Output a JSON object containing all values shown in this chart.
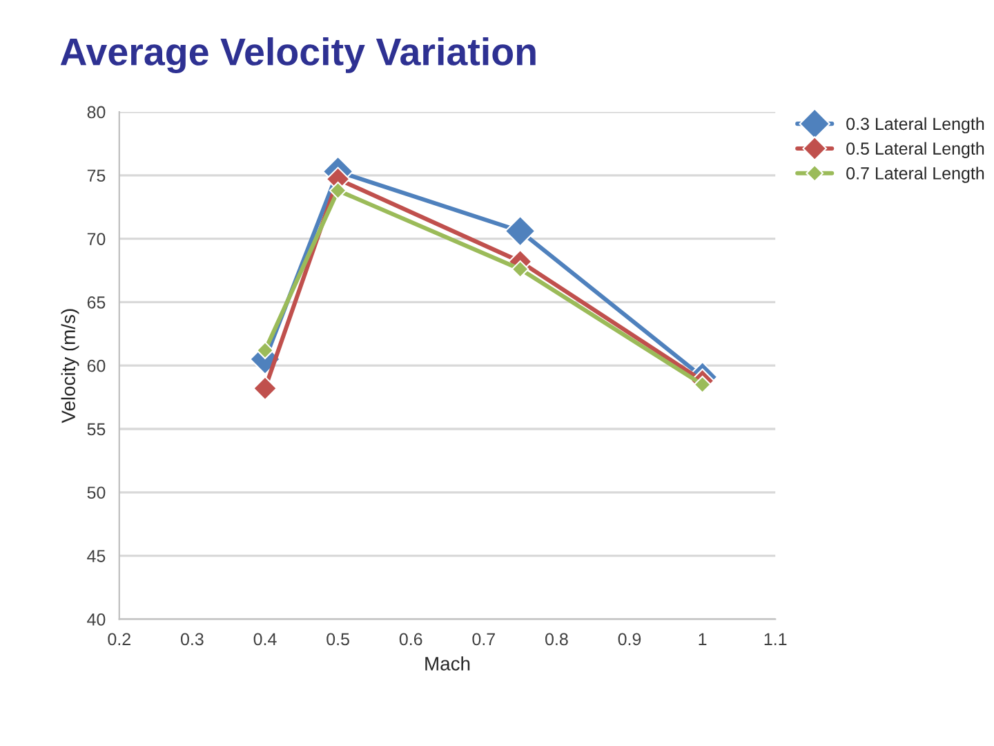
{
  "chart_data": {
    "type": "line",
    "title": "Average Velocity Variation",
    "xlabel": "Mach",
    "ylabel": "Velocity (m/s)",
    "xlim": [
      0.2,
      1.1
    ],
    "xticks": [
      0.2,
      0.3,
      0.4,
      0.5,
      0.6,
      0.7,
      0.8,
      0.9,
      1,
      1.1
    ],
    "ylim": [
      40,
      80
    ],
    "yticks": [
      40,
      45,
      50,
      55,
      60,
      65,
      70,
      75,
      80
    ],
    "grid": "y",
    "legend": "top right",
    "marker": "diamond",
    "line_style": "solid",
    "series": [
      {
        "name": "0.3 Lateral Length",
        "color": "#4f81bd",
        "x": [
          0.4,
          0.5,
          0.75,
          1.0
        ],
        "values": [
          60.5,
          75.3,
          70.6,
          59.1
        ]
      },
      {
        "name": "0.5 Lateral Length",
        "color": "#c0504d",
        "x": [
          0.4,
          0.5,
          0.75,
          1.0
        ],
        "values": [
          58.2,
          74.7,
          68.2,
          58.8
        ]
      },
      {
        "name": "0.7 Lateral Length",
        "color": "#9bbb59",
        "x": [
          0.4,
          0.5,
          0.75,
          1.0
        ],
        "values": [
          61.2,
          73.8,
          67.6,
          58.5
        ]
      }
    ]
  }
}
